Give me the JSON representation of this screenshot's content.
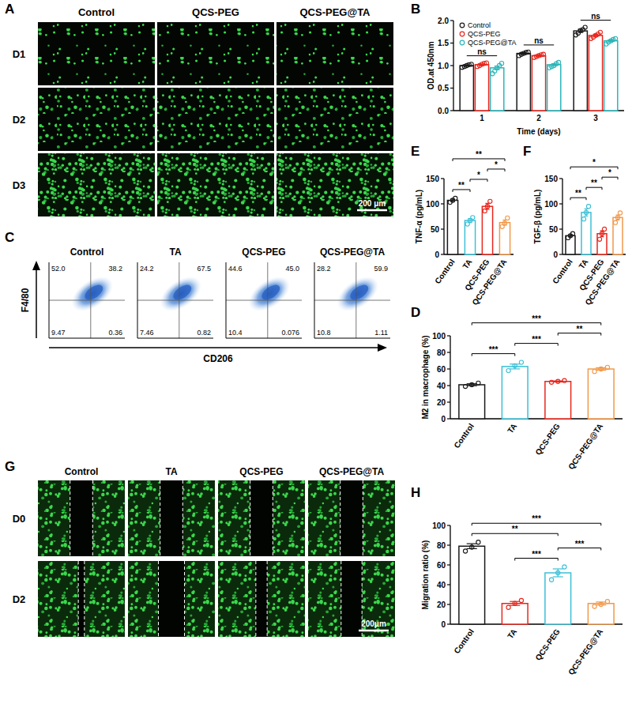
{
  "panel_A": {
    "panel": "A",
    "columns": [
      "Control",
      "QCS-PEG",
      "QCS-PEG@TA"
    ],
    "rows": [
      "D1",
      "D2",
      "D3"
    ],
    "scale_bar": "200 μm"
  },
  "chart_data": [
    {
      "panel": "B",
      "type": "bar",
      "x_label": "Time (days)",
      "y_label": "OD.at 450nm",
      "categories": [
        "1",
        "2",
        "3"
      ],
      "series": [
        {
          "name": "Control",
          "color": "#1a1a1a",
          "values": [
            1.0,
            1.27,
            1.77
          ],
          "errors": [
            0.015,
            0.02,
            0.035
          ],
          "points": [
            [
              0.96,
              0.98,
              1.0,
              1.02,
              1.03
            ],
            [
              1.22,
              1.25,
              1.27,
              1.29,
              1.3
            ],
            [
              1.68,
              1.72,
              1.78,
              1.8,
              1.85
            ]
          ]
        },
        {
          "name": "QCS-PEG",
          "color": "#e8271e",
          "values": [
            1.02,
            1.22,
            1.67
          ],
          "errors": [
            0.015,
            0.015,
            0.025
          ],
          "points": [
            [
              0.98,
              1.0,
              1.03,
              1.05,
              1.06
            ],
            [
              1.18,
              1.2,
              1.22,
              1.24,
              1.25
            ],
            [
              1.6,
              1.63,
              1.67,
              1.7,
              1.74
            ]
          ]
        },
        {
          "name": "QCS-PEG@TA",
          "color": "#2bb5b8",
          "values": [
            0.95,
            1.02,
            1.55
          ],
          "errors": [
            0.04,
            0.02,
            0.02
          ],
          "points": [
            [
              0.82,
              0.88,
              0.95,
              1.0,
              1.05
            ],
            [
              0.95,
              0.98,
              1.0,
              1.04,
              1.07
            ],
            [
              1.48,
              1.52,
              1.55,
              1.58,
              1.6
            ]
          ]
        }
      ],
      "ylim": [
        0,
        2
      ],
      "yticks": [
        {
          "value": 0,
          "label": "0.0"
        },
        {
          "value": 0.5,
          "label": "0.5"
        },
        {
          "value": 1,
          "label": "1.0"
        },
        {
          "value": 1.5,
          "label": "1.5"
        },
        {
          "value": 2,
          "label": "2.0"
        }
      ],
      "legend": "upper-left",
      "grid": false,
      "comparisons": [
        {
          "category": 0,
          "label": "ns"
        },
        {
          "category": 1,
          "label": "ns"
        },
        {
          "category": 2,
          "label": "ns"
        }
      ]
    },
    {
      "panel": "E",
      "type": "bar",
      "y_label": "TNF-α (pg/mL)",
      "categories": [
        "Control",
        "TA",
        "QCS-PEG",
        "QCS-PEG@TA"
      ],
      "values": [
        107,
        67,
        95,
        63
      ],
      "errors": [
        2.5,
        4,
        6,
        5
      ],
      "points": [
        [
          103,
          107,
          111
        ],
        [
          60,
          67,
          73
        ],
        [
          86,
          95,
          105
        ],
        [
          55,
          62,
          72
        ]
      ],
      "colors": [
        "#1a1a1a",
        "#3cc0d6",
        "#e8271e",
        "#f2994a"
      ],
      "ylim": [
        0,
        150
      ],
      "yticks": [
        0,
        50,
        100,
        150
      ],
      "grid": false,
      "comparisons": [
        {
          "from": 0,
          "to": 1,
          "label": "**"
        },
        {
          "from": 1,
          "to": 2,
          "label": "*"
        },
        {
          "from": 2,
          "to": 3,
          "label": "*"
        },
        {
          "from": 0,
          "to": 3,
          "label": "**"
        }
      ]
    },
    {
      "panel": "F",
      "type": "bar",
      "y_label": "TGF-β (pg/mL)",
      "categories": [
        "Control",
        "TA",
        "QCS-PEG",
        "QCS-PEG@TA"
      ],
      "values": [
        37,
        83,
        41,
        73
      ],
      "errors": [
        2.5,
        7,
        6,
        5
      ],
      "points": [
        [
          33,
          37,
          41
        ],
        [
          70,
          83,
          95
        ],
        [
          30,
          41,
          50
        ],
        [
          63,
          73,
          82
        ]
      ],
      "colors": [
        "#1a1a1a",
        "#3cc0d6",
        "#e8271e",
        "#f2994a"
      ],
      "ylim": [
        0,
        150
      ],
      "yticks": [
        0,
        50,
        100,
        150
      ],
      "grid": false,
      "comparisons": [
        {
          "from": 0,
          "to": 1,
          "label": "**"
        },
        {
          "from": 1,
          "to": 2,
          "label": "**"
        },
        {
          "from": 2,
          "to": 3,
          "label": "*"
        },
        {
          "from": 0,
          "to": 3,
          "label": "*"
        }
      ]
    },
    {
      "panel": "D",
      "type": "bar",
      "y_label": "M2 in macrophage (%)",
      "categories": [
        "Control",
        "TA",
        "QCS-PEG",
        "QCS-PEG@TA"
      ],
      "values": [
        41,
        63,
        45,
        60
      ],
      "errors": [
        1.2,
        2.9,
        0.6,
        1.5
      ],
      "points": [
        [
          39,
          41,
          43
        ],
        [
          58,
          64,
          68
        ],
        [
          44,
          45,
          46
        ],
        [
          57,
          60,
          62
        ]
      ],
      "colors": [
        "#1a1a1a",
        "#3cc0d6",
        "#e8271e",
        "#f2994a"
      ],
      "ylim": [
        0,
        100
      ],
      "yticks": [
        0,
        20,
        40,
        60,
        80,
        100
      ],
      "grid": false,
      "comparisons": [
        {
          "from": 0,
          "to": 1,
          "label": "***"
        },
        {
          "from": 1,
          "to": 2,
          "label": "***"
        },
        {
          "from": 2,
          "to": 3,
          "label": "**"
        },
        {
          "from": 0,
          "to": 3,
          "label": "***"
        }
      ]
    },
    {
      "panel": "H",
      "type": "bar",
      "y_label": "Migration ratio (%)",
      "categories": [
        "Control",
        "TA",
        "QCS-PEG",
        "QCS-PEG@TA"
      ],
      "values": [
        79,
        21,
        52,
        21
      ],
      "errors": [
        2.5,
        2,
        4,
        1.5
      ],
      "points": [
        [
          74,
          78,
          83
        ],
        [
          17,
          21,
          24
        ],
        [
          45,
          52,
          58
        ],
        [
          18,
          20,
          23
        ]
      ],
      "colors": [
        "#1a1a1a",
        "#e8271e",
        "#3cc0d6",
        "#f2994a"
      ],
      "ylim": [
        0,
        100
      ],
      "yticks": [
        0,
        20,
        40,
        60,
        80,
        100
      ],
      "grid": false,
      "comparisons": [
        {
          "from": 1,
          "to": 2,
          "label": "***"
        },
        {
          "from": 2,
          "to": 3,
          "label": "***"
        },
        {
          "from": 0,
          "to": 2,
          "label": "**"
        },
        {
          "from": 0,
          "to": 3,
          "label": "***"
        }
      ]
    }
  ],
  "flow": {
    "panel": "C",
    "x_label": "CD206",
    "y_label": "F4/80",
    "plots": [
      {
        "title": "Control",
        "quadrants": {
          "upper_left": "52.0",
          "upper_right": "38.2",
          "lower_left": "9.47",
          "lower_right": "0.36"
        }
      },
      {
        "title": "TA",
        "quadrants": {
          "upper_left": "24.2",
          "upper_right": "67.5",
          "lower_left": "7.46",
          "lower_right": "0.82"
        }
      },
      {
        "title": "QCS-PEG",
        "quadrants": {
          "upper_left": "44.6",
          "upper_right": "45.0",
          "lower_left": "10.4",
          "lower_right": "0.076"
        }
      },
      {
        "title": "QCS-PEG@TA",
        "quadrants": {
          "upper_left": "28.2",
          "upper_right": "59.9",
          "lower_left": "10.8",
          "lower_right": "1.11"
        }
      }
    ]
  },
  "panel_G": {
    "panel": "G",
    "columns": [
      "Control",
      "TA",
      "QCS-PEG",
      "QCS-PEG@TA"
    ],
    "rows": [
      "D0",
      "D2"
    ],
    "scale_bar": "200μm"
  }
}
